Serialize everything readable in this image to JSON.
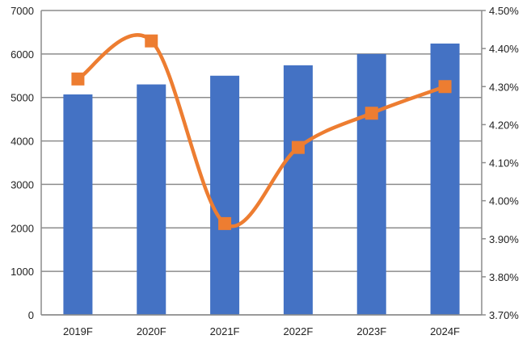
{
  "chart_data": {
    "type": "bar+line",
    "categories": [
      "2019F",
      "2020F",
      "2021F",
      "2022F",
      "2023F",
      "2024F"
    ],
    "series": [
      {
        "type": "bar",
        "axis": "left",
        "color": "#4472C4",
        "values": [
          5070,
          5300,
          5500,
          5740,
          6000,
          6240
        ]
      },
      {
        "type": "line",
        "axis": "right",
        "color": "#ED7D31",
        "smooth": true,
        "marker": "square",
        "values": [
          4.32,
          4.42,
          3.94,
          4.14,
          4.23,
          4.3
        ]
      }
    ],
    "left_axis": {
      "ylim": [
        0,
        7000
      ],
      "ticks": [
        "0",
        "1000",
        "2000",
        "3000",
        "4000",
        "5000",
        "6000",
        "7000"
      ]
    },
    "right_axis": {
      "ylim": [
        3.7,
        4.5
      ],
      "ticks": [
        "3.70%",
        "3.80%",
        "3.90%",
        "4.00%",
        "4.10%",
        "4.20%",
        "4.30%",
        "4.40%",
        "4.50%"
      ]
    },
    "grid": true,
    "legend": "none",
    "title": "",
    "xlabel": "",
    "ylabel": ""
  }
}
